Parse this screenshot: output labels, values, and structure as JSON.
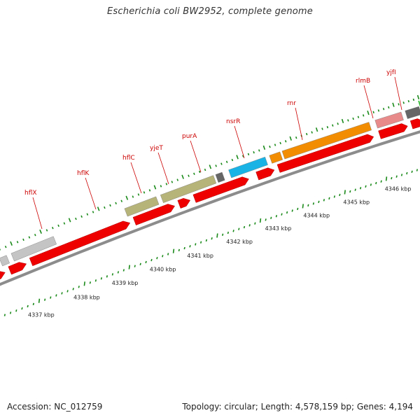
{
  "title": "Escherichia coli BW2952, complete genome",
  "footer": {
    "accession": "Accession: NC_012759",
    "summary": "Topology: circular; Length: 4,578,159 bp; Genes: 4,194"
  },
  "colors": {
    "cds_arrow": "#ee0000",
    "backbone": "#8c8c8c",
    "tick": "#1a8a1a",
    "label": "#cc0000",
    "gray_gene": "#c4c4c4",
    "olive_gene": "#b7b47a",
    "dark_gene": "#666666",
    "blue_gene": "#1ab3e6",
    "orange_gene": "#f28c00",
    "pink_gene": "#e88a8a",
    "green_gene": "#33bb33"
  },
  "kbp_ticks": [
    "4337 kbp",
    "4338 kbp",
    "4339 kbp",
    "4340 kbp",
    "4341 kbp",
    "4342 kbp",
    "4343 kbp",
    "4344 kbp",
    "4345 kbp",
    "4346 kbp"
  ],
  "genes": [
    {
      "label": "hflX",
      "color": "gray_gene"
    },
    {
      "label": "hflK",
      "color": "olive_gene"
    },
    {
      "label": "hflC",
      "color": "olive_gene"
    },
    {
      "label": "yjeT",
      "color": "dark_gene"
    },
    {
      "label": "purA",
      "color": "blue_gene"
    },
    {
      "label": "nsrR",
      "color": "orange_gene"
    },
    {
      "label": "rnr",
      "color": "orange_gene"
    },
    {
      "label": "rlmB",
      "color": "pink_gene"
    },
    {
      "label": "yjfI",
      "color": "dark_gene"
    }
  ]
}
